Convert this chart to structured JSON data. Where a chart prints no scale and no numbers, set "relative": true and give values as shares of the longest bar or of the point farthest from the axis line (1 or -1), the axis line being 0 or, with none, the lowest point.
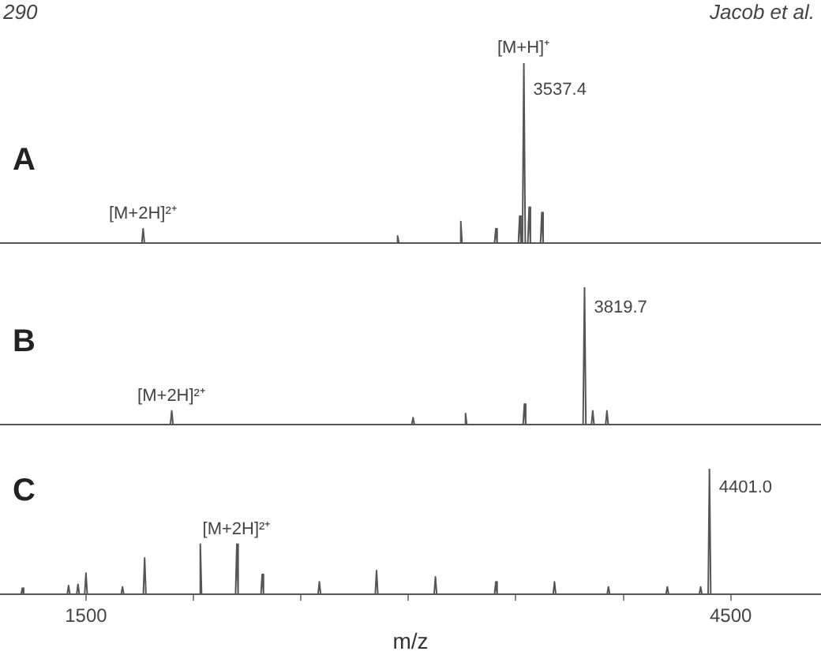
{
  "chart_data": [
    {
      "type": "line",
      "title": "A",
      "relative": true,
      "tick_labels": false,
      "legend": false,
      "grid": false,
      "marker": "none",
      "xlim": [
        1100,
        4920
      ],
      "annotations": [
        "290",
        "Jacob et al.",
        {
          "text": "[M+H]⁺",
          "x": 3537.4,
          "y": 1
        },
        {
          "text": "3537.4",
          "x": 3537.4,
          "y": 0.85
        },
        {
          "text": "[M+2H]²⁺",
          "x": 1766,
          "y": 0.08
        }
      ],
      "series": [
        {
          "color": "#555555",
          "x": [
            1100,
            1760,
            1766,
            1772,
            2944,
            2950,
            2956,
            3238,
            3244,
            3250,
            3401,
            3407,
            3413,
            3512,
            3518,
            3524,
            3531,
            3537.4,
            3544,
            3556,
            3562,
            3568,
            3615,
            3621,
            3627,
            4920
          ],
          "values": [
            0,
            0,
            0.08,
            0,
            0,
            0.04,
            0,
            0,
            0.12,
            0,
            0,
            0.08,
            0,
            0,
            0.15,
            0,
            0,
            1,
            0,
            0,
            0.2,
            0,
            0,
            0.17,
            0,
            0
          ]
        }
      ]
    },
    {
      "type": "line",
      "title": "B",
      "relative": true,
      "tick_labels": false,
      "legend": false,
      "grid": false,
      "marker": "none",
      "xlim": [
        1100,
        4920
      ],
      "annotations": [
        {
          "text": "3819.7",
          "x": 3819.7,
          "y": 0.85
        },
        {
          "text": "[M+2H]²⁺",
          "x": 1899,
          "y": 0.1
        }
      ],
      "series": [
        {
          "color": "#555555",
          "x": [
            1100,
            1893,
            1899,
            1905,
            3016,
            3022,
            3028,
            3260,
            3266,
            3272,
            3534,
            3540,
            3546,
            3813,
            3819.7,
            3826,
            3852,
            3858,
            3864,
            3918,
            3924,
            3930,
            4920
          ],
          "values": [
            0,
            0,
            0.1,
            0,
            0,
            0.05,
            0,
            0,
            0.08,
            0,
            0,
            0.15,
            0,
            0,
            1,
            0,
            0,
            0.1,
            0,
            0,
            0.1,
            0,
            0
          ]
        }
      ]
    },
    {
      "type": "line",
      "title": "C",
      "relative": true,
      "tick_labels": "x",
      "legend": false,
      "grid": false,
      "marker": "none",
      "xlabel": "m/z",
      "xlim": [
        1100,
        4920
      ],
      "xticks": [
        1500,
        {
          "value": 2000,
          "label": null
        },
        {
          "value": 2500,
          "label": null
        },
        {
          "value": 3000,
          "label": null
        },
        {
          "value": 3500,
          "label": null
        },
        {
          "value": 4000,
          "label": null
        },
        4500
      ],
      "annotations": [
        {
          "text": "4401.0",
          "x": 4401.0,
          "y": 0.85
        },
        {
          "text": "[M+2H]²⁺",
          "x": 2202,
          "y": 0.4
        }
      ],
      "series": [
        {
          "color": "#555555",
          "x": [
            1100,
            1198,
            1204,
            1210,
            1413,
            1419,
            1425,
            1457,
            1463,
            1469,
            1494,
            1500,
            1506,
            1664,
            1670,
            1676,
            1767,
            1773,
            1779,
            2026,
            2032,
            2038,
            2196,
            2202,
            2208,
            2314,
            2320,
            2326,
            2580,
            2586,
            2592,
            2846,
            2852,
            2858,
            3120,
            3126,
            3132,
            3401,
            3407,
            3413,
            3674,
            3680,
            3686,
            3925,
            3931,
            3937,
            4199,
            4205,
            4211,
            4354,
            4360,
            4366,
            4395,
            4401.0,
            4407,
            4920
          ],
          "values": [
            0,
            0,
            0.05,
            0,
            0,
            0.07,
            0,
            0,
            0.08,
            0,
            0,
            0.17,
            0,
            0,
            0.06,
            0,
            0,
            0.29,
            0,
            0,
            0.4,
            0,
            0,
            0.4,
            0,
            0,
            0.16,
            0,
            0,
            0.1,
            0,
            0,
            0.19,
            0,
            0,
            0.14,
            0,
            0,
            0.1,
            0,
            0,
            0.1,
            0,
            0,
            0.06,
            0,
            0,
            0.06,
            0,
            0,
            0.06,
            0,
            0,
            1,
            0,
            0
          ]
        }
      ]
    }
  ]
}
